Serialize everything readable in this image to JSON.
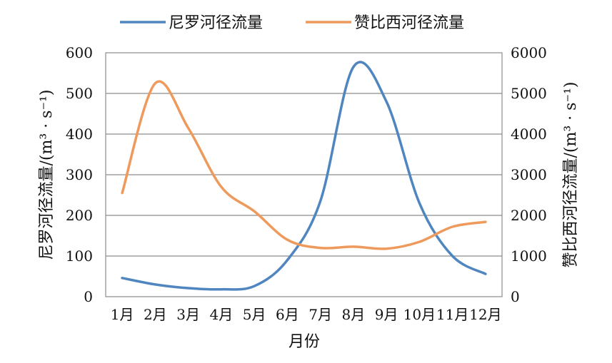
{
  "chart_data": {
    "type": "line",
    "categories": [
      "1月",
      "2月",
      "3月",
      "4月",
      "5月",
      "6月",
      "7月",
      "8月",
      "9月",
      "10月",
      "11月",
      "12月"
    ],
    "series": [
      {
        "name": "尼罗河径流量",
        "axis": "left",
        "color": "#4f86c0",
        "values": [
          46,
          30,
          21,
          18,
          26,
          90,
          235,
          565,
          480,
          230,
          100,
          56
        ]
      },
      {
        "name": "赞比西河径流量",
        "axis": "right",
        "color": "#ee9a5c",
        "values": [
          2550,
          5250,
          4150,
          2700,
          2100,
          1400,
          1200,
          1230,
          1180,
          1350,
          1720,
          1840
        ]
      }
    ],
    "xlabel": "月份",
    "ylabel_left": "尼罗河径流量/(m³ · s⁻¹)",
    "ylabel_right": "赞比西河径流量/(m³ · s⁻¹)",
    "ylim_left": [
      0,
      600
    ],
    "ylim_right": [
      0,
      6000
    ],
    "yticks_left": [
      "0",
      "100",
      "200",
      "300",
      "400",
      "500",
      "600"
    ],
    "yticks_right": [
      "0",
      "1000",
      "2000",
      "3000",
      "4000",
      "5000",
      "6000"
    ],
    "grid": true,
    "legend_position": "top-center"
  }
}
